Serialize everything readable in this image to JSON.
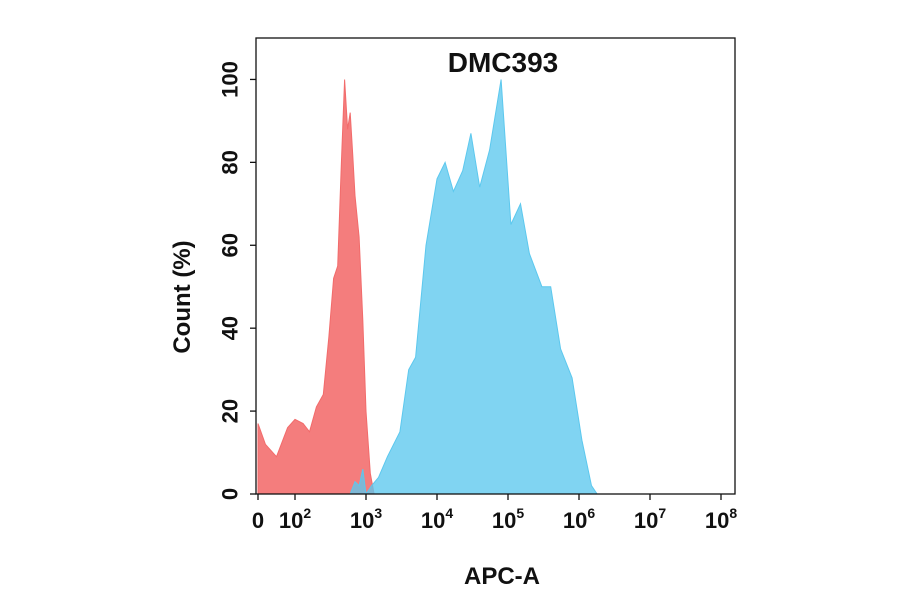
{
  "chart_data": {
    "type": "area",
    "title": "DMC393",
    "xlabel": "APC-A",
    "ylabel": "Count  (%)",
    "x_scale": "biexponential",
    "xlim": [
      0,
      100000000
    ],
    "ylim": [
      0,
      110
    ],
    "x_ticks": [
      {
        "base": "0",
        "exp": ""
      },
      {
        "base": "10",
        "exp": "2"
      },
      {
        "base": "10",
        "exp": "3"
      },
      {
        "base": "10",
        "exp": "4"
      },
      {
        "base": "10",
        "exp": "5"
      },
      {
        "base": "10",
        "exp": "6"
      },
      {
        "base": "10",
        "exp": "7"
      },
      {
        "base": "10",
        "exp": "8"
      }
    ],
    "y_ticks": [
      "0",
      "20",
      "40",
      "60",
      "80",
      "100"
    ],
    "legend": "none",
    "grid": false,
    "series": [
      {
        "color": "#f26b6b",
        "points": [
          [
            0,
            17
          ],
          [
            20,
            12
          ],
          [
            50,
            9
          ],
          [
            80,
            16
          ],
          [
            100,
            18
          ],
          [
            130,
            17
          ],
          [
            160,
            15
          ],
          [
            200,
            21
          ],
          [
            250,
            24
          ],
          [
            300,
            38
          ],
          [
            350,
            52
          ],
          [
            400,
            55
          ],
          [
            450,
            80
          ],
          [
            500,
            100
          ],
          [
            550,
            88
          ],
          [
            600,
            92
          ],
          [
            650,
            82
          ],
          [
            700,
            72
          ],
          [
            800,
            62
          ],
          [
            900,
            42
          ],
          [
            1000,
            20
          ],
          [
            1150,
            5
          ],
          [
            1300,
            0
          ]
        ]
      },
      {
        "color": "#5cc8ee",
        "points": [
          [
            0,
            0
          ],
          [
            600,
            0
          ],
          [
            700,
            3
          ],
          [
            800,
            2
          ],
          [
            900,
            6
          ],
          [
            1000,
            0
          ],
          [
            1200,
            2
          ],
          [
            1500,
            4
          ],
          [
            2000,
            9
          ],
          [
            3000,
            15
          ],
          [
            4000,
            30
          ],
          [
            5000,
            33
          ],
          [
            7000,
            60
          ],
          [
            10000,
            76
          ],
          [
            13000,
            80
          ],
          [
            17000,
            73
          ],
          [
            23000,
            78
          ],
          [
            30000,
            87
          ],
          [
            40000,
            74
          ],
          [
            55000,
            83
          ],
          [
            80000,
            100
          ],
          [
            110000,
            65
          ],
          [
            150000,
            70
          ],
          [
            200000,
            58
          ],
          [
            300000,
            50
          ],
          [
            400000,
            50
          ],
          [
            550000,
            35
          ],
          [
            800000,
            28
          ],
          [
            1100000,
            13
          ],
          [
            1500000,
            2
          ],
          [
            1800000,
            0
          ]
        ]
      }
    ]
  }
}
